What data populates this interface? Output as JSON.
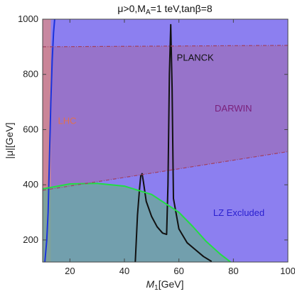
{
  "chart_data": {
    "type": "area",
    "title": "μ>0,M_A=1 teV,tanβ=8",
    "xlabel": "M1[GeV]",
    "ylabel": "|μ|[GeV]",
    "xlim": [
      10,
      100
    ],
    "ylim": [
      120,
      1000
    ],
    "xticks": [
      20,
      40,
      60,
      80,
      100
    ],
    "yticks": [
      200,
      400,
      600,
      800,
      1000
    ],
    "grid": false,
    "regions": [
      {
        "name": "LZ Excluded",
        "color": "#8c7ff0",
        "points": [
          [
            10,
            120
          ],
          [
            100,
            120
          ],
          [
            100,
            1000
          ],
          [
            10,
            1000
          ]
        ]
      },
      {
        "name": "DARWIN",
        "color": "#9a6fbf",
        "points": [
          [
            10,
            900
          ],
          [
            100,
            905
          ],
          [
            100,
            520
          ],
          [
            10,
            380
          ]
        ]
      },
      {
        "name": "LHC",
        "color": "#d98a8a",
        "points": [
          [
            10,
            120
          ],
          [
            13,
            120
          ],
          [
            13,
            1000
          ],
          [
            10,
            1000
          ]
        ]
      },
      {
        "name": "green",
        "color": "#6aa89a",
        "points": [
          [
            10,
            385
          ],
          [
            20,
            403
          ],
          [
            30,
            405
          ],
          [
            40,
            395
          ],
          [
            50,
            365
          ],
          [
            60,
            300
          ],
          [
            65,
            250
          ],
          [
            70,
            195
          ],
          [
            75,
            150
          ],
          [
            79,
            120
          ],
          [
            10,
            120
          ]
        ]
      }
    ],
    "lines": [
      {
        "name": "planck",
        "color": "#111111",
        "points": [
          [
            44,
            120
          ],
          [
            44.8,
            290
          ],
          [
            45.5,
            380
          ],
          [
            46,
            432
          ],
          [
            46.5,
            440
          ],
          [
            47,
            410
          ],
          [
            48,
            340
          ],
          [
            50,
            285
          ],
          [
            52,
            248
          ],
          [
            54,
            225
          ],
          [
            55.5,
            220
          ],
          [
            56,
            400
          ],
          [
            56.5,
            800
          ],
          [
            57,
            980
          ],
          [
            57.5,
            750
          ],
          [
            58,
            350
          ],
          [
            60,
            240
          ],
          [
            63,
            190
          ],
          [
            66,
            165
          ],
          [
            69,
            140
          ],
          [
            72,
            122
          ]
        ]
      },
      {
        "name": "lhc-boundary",
        "color": "#1a33dd",
        "points": [
          [
            10.8,
            120
          ],
          [
            11.5,
            200
          ],
          [
            12,
            300
          ],
          [
            12.5,
            500
          ],
          [
            13,
            700
          ],
          [
            13.5,
            850
          ],
          [
            14,
            950
          ],
          [
            14.4,
            1000
          ]
        ]
      },
      {
        "name": "green-boundary",
        "color": "#22dd44",
        "points": [
          [
            10,
            385
          ],
          [
            20,
            403
          ],
          [
            30,
            405
          ],
          [
            40,
            395
          ],
          [
            50,
            365
          ],
          [
            60,
            300
          ],
          [
            65,
            250
          ],
          [
            70,
            195
          ],
          [
            75,
            150
          ],
          [
            79,
            120
          ]
        ]
      },
      {
        "name": "darwin-boundary",
        "color": "#a04060",
        "points": [
          [
            10,
            380
          ],
          [
            100,
            520
          ]
        ]
      },
      {
        "name": "darwin-top",
        "color": "#a04060",
        "points": [
          [
            10,
            900
          ],
          [
            100,
            905
          ]
        ]
      }
    ],
    "labels": [
      {
        "text": "PLANCK",
        "x": 66,
        "y": 850,
        "color": "#111111"
      },
      {
        "text": "DARWIN",
        "x": 80,
        "y": 665,
        "color": "#7a1f7a"
      },
      {
        "text": "LHC",
        "x": 19,
        "y": 620,
        "color": "#e07050"
      },
      {
        "text": "LZ Excluded",
        "x": 82,
        "y": 287,
        "color": "#2a20d0"
      }
    ]
  }
}
